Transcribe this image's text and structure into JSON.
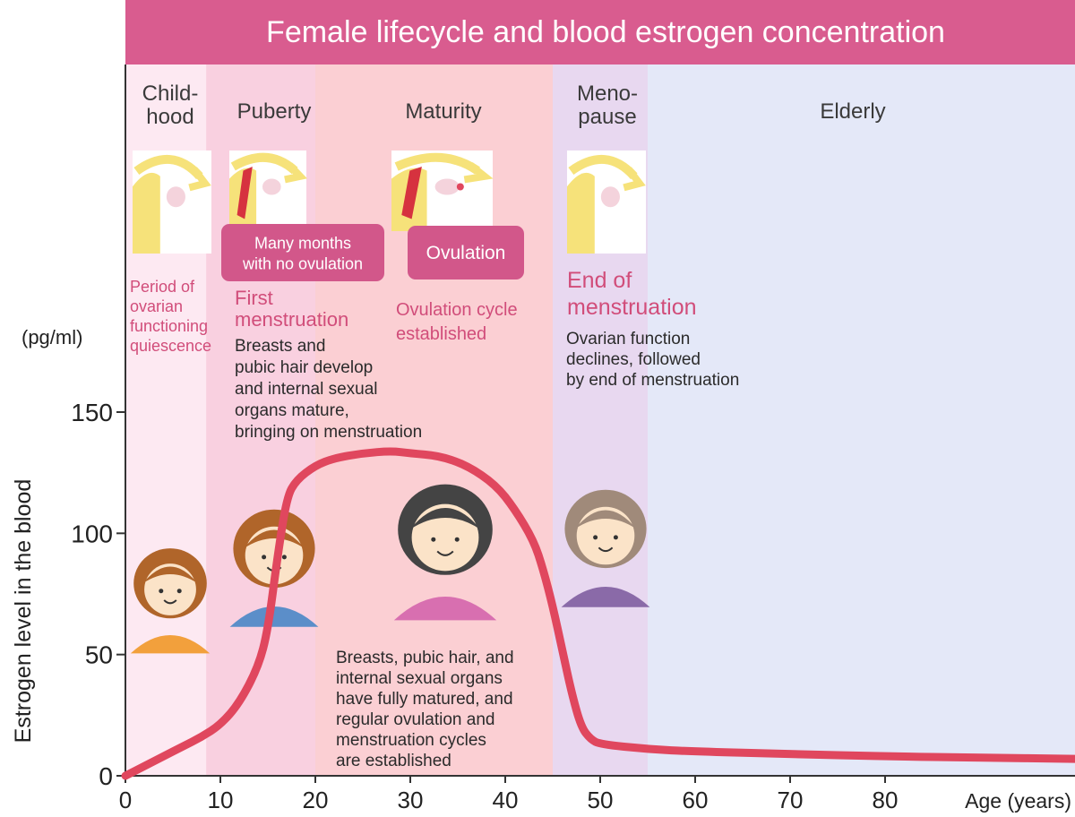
{
  "chart_data": {
    "type": "line",
    "title": "Female lifecycle and blood estrogen concentration",
    "ylabel": "Estrogen level in the blood",
    "yunit": "(pg/ml)",
    "xlabel": "Age (years)",
    "xlim": [
      0,
      100
    ],
    "ylim": [
      0,
      150
    ],
    "xticks": [
      0,
      10,
      20,
      30,
      40,
      50,
      60,
      70,
      80
    ],
    "yticks": [
      0,
      50,
      100,
      150
    ],
    "grid": false,
    "series": [
      {
        "name": "",
        "color": "#e0475e",
        "x": [
          0,
          2,
          4,
          6,
          8,
          10,
          12,
          14,
          15,
          16,
          17,
          18,
          20,
          22,
          25,
          28,
          30,
          33,
          36,
          39,
          41,
          43,
          44,
          45,
          46,
          47,
          48,
          49,
          50,
          55,
          60,
          70,
          80,
          90,
          100
        ],
        "y": [
          0,
          4,
          8,
          12,
          16,
          21,
          30,
          45,
          60,
          90,
          115,
          122,
          128,
          131,
          133,
          134,
          133,
          132,
          128,
          120,
          110,
          97,
          85,
          70,
          52,
          34,
          20,
          15,
          13,
          11,
          10,
          9,
          8,
          7.5,
          7
        ]
      }
    ],
    "stages": [
      {
        "label": "Child-\nhood",
        "x_start": 0,
        "x_end": 8.5,
        "color": "#fde9f2"
      },
      {
        "label": "Puberty",
        "x_start": 8.5,
        "x_end": 20,
        "color": "#f9d0e0"
      },
      {
        "label": "Maturity",
        "x_start": 20,
        "x_end": 45,
        "color": "#fbcfd3"
      },
      {
        "label": "Meno-\npause",
        "x_start": 45,
        "x_end": 55,
        "color": "#e8d8f0"
      },
      {
        "label": "Elderly",
        "x_start": 55,
        "x_end": 100,
        "color": "#e4e8f8"
      }
    ],
    "badges": [
      {
        "id": "no-ovulation",
        "text": "Many months\nwith no ovulation"
      },
      {
        "id": "ovulation",
        "text": "Ovulation"
      }
    ],
    "annotations": [
      {
        "id": "quiescence",
        "text": "Period of\novarian\nfunctioning\nquiescence",
        "color": "#d14d7a"
      },
      {
        "id": "first-menstruation",
        "text": "First\nmenstruation",
        "color": "#d14d7a"
      },
      {
        "id": "puberty-desc",
        "text": "Breasts and\npubic hair develop\nand internal sexual\norgans mature,\nbringing on menstruation",
        "color": "#2b2b2b"
      },
      {
        "id": "ovulation-cycle",
        "text": "Ovulation cycle\nestablished",
        "color": "#d14d7a"
      },
      {
        "id": "end-of-menstruation",
        "text": "End of\nmenstruation",
        "color": "#d14d7a"
      },
      {
        "id": "menopause-desc",
        "text": "Ovarian function\ndeclines, followed\nby end of menstruation",
        "color": "#2b2b2b"
      },
      {
        "id": "maturity-desc",
        "text": "Breasts, pubic hair, and\ninternal sexual organs\nhave fully matured, and\nregular ovulation and\nmenstruation cycles\nare established",
        "color": "#2b2b2b"
      }
    ],
    "colors": {
      "title_bar": "#d95c8f",
      "title_text": "#ffffff",
      "line": "#e0475e",
      "badge": "#d2578a",
      "axis": "#333333"
    }
  }
}
